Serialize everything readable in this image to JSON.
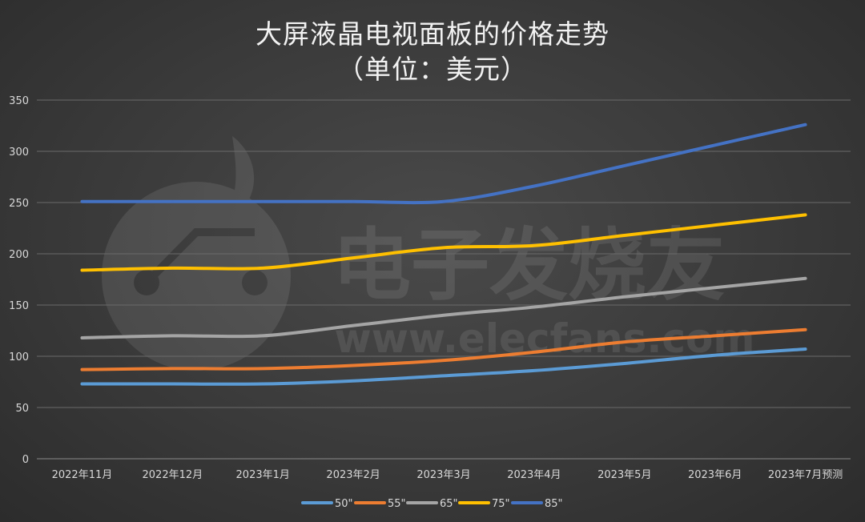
{
  "chart_data": {
    "type": "line",
    "title": "大屏液晶电视面板的价格走势",
    "subtitle": "（单位：美元）",
    "categories": [
      "2022年11月",
      "2022年12月",
      "2023年1月",
      "2023年2月",
      "2023年3月",
      "2023年4月",
      "2023年5月",
      "2023年6月",
      "2023年7月预测"
    ],
    "ylim": [
      0,
      350
    ],
    "yticks": [
      0,
      50,
      100,
      150,
      200,
      250,
      300,
      350
    ],
    "grid": true,
    "legend_position": "bottom",
    "series": [
      {
        "name": "50\"",
        "color": "#5b9bd5",
        "values": [
          73,
          73,
          73,
          76,
          81,
          86,
          93,
          101,
          107
        ]
      },
      {
        "name": "55\"",
        "color": "#ed7d31",
        "values": [
          87,
          88,
          88,
          91,
          96,
          104,
          114,
          120,
          126
        ]
      },
      {
        "name": "65\"",
        "color": "#a5a5a5",
        "values": [
          118,
          120,
          120,
          130,
          140,
          148,
          158,
          167,
          176
        ]
      },
      {
        "name": "75\"",
        "color": "#ffc000",
        "values": [
          184,
          186,
          186,
          196,
          206,
          208,
          218,
          228,
          238
        ]
      },
      {
        "name": "85\"",
        "color": "#4472c4",
        "values": [
          251,
          251,
          251,
          251,
          251,
          266,
          286,
          306,
          326
        ]
      }
    ]
  },
  "watermark": {
    "text_cn": "电子发烧友",
    "text_url": "www.elecfans.com"
  }
}
